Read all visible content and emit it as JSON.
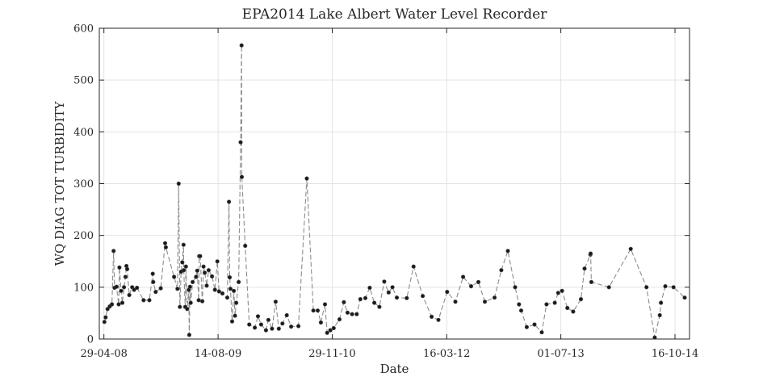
{
  "chart_data": {
    "type": "scatter",
    "title": "EPA2014 Lake Albert Water Level Recorder",
    "xlabel": "Date",
    "ylabel": "WQ DIAG TOT TURBIDITY",
    "ylim": [
      0,
      600
    ],
    "yticks": [
      0,
      100,
      200,
      300,
      400,
      500,
      600
    ],
    "xlim": [
      "2008-04-10",
      "2014-12-15"
    ],
    "xticks": [
      {
        "date": "2008-04-29",
        "label": "29-04-08"
      },
      {
        "date": "2009-08-14",
        "label": "14-08-09"
      },
      {
        "date": "2010-11-29",
        "label": "29-11-10"
      },
      {
        "date": "2012-03-16",
        "label": "16-03-12"
      },
      {
        "date": "2013-07-01",
        "label": "01-07-13"
      },
      {
        "date": "2014-10-16",
        "label": "16-10-14"
      }
    ],
    "grid": true,
    "line_style": "dashed",
    "colors": {
      "marker": "#1a1a1a",
      "line": "#8c8c8c",
      "grid": "#e3e3e3",
      "axis": "#262626"
    },
    "series": [
      {
        "marker": "dot",
        "points": [
          {
            "x": "2008-05-01",
            "y": 33
          },
          {
            "x": "2008-05-06",
            "y": 42
          },
          {
            "x": "2008-05-14",
            "y": 58
          },
          {
            "x": "2008-05-23",
            "y": 63
          },
          {
            "x": "2008-06-01",
            "y": 67
          },
          {
            "x": "2008-06-08",
            "y": 170
          },
          {
            "x": "2008-06-12",
            "y": 99
          },
          {
            "x": "2008-06-20",
            "y": 101
          },
          {
            "x": "2008-06-29",
            "y": 67
          },
          {
            "x": "2008-07-02",
            "y": 138
          },
          {
            "x": "2008-07-09",
            "y": 93
          },
          {
            "x": "2008-07-14",
            "y": 70
          },
          {
            "x": "2008-07-21",
            "y": 100
          },
          {
            "x": "2008-07-27",
            "y": 120
          },
          {
            "x": "2008-07-31",
            "y": 141
          },
          {
            "x": "2008-08-03",
            "y": 135
          },
          {
            "x": "2008-08-12",
            "y": 85
          },
          {
            "x": "2008-08-24",
            "y": 100
          },
          {
            "x": "2008-09-01",
            "y": 95
          },
          {
            "x": "2008-09-13",
            "y": 99
          },
          {
            "x": "2008-10-10",
            "y": 75
          },
          {
            "x": "2008-11-03",
            "y": 75
          },
          {
            "x": "2008-11-17",
            "y": 126
          },
          {
            "x": "2008-11-19",
            "y": 110
          },
          {
            "x": "2008-11-29",
            "y": 91
          },
          {
            "x": "2008-12-20",
            "y": 98
          },
          {
            "x": "2009-01-07",
            "y": 185
          },
          {
            "x": "2009-01-10",
            "y": 177
          },
          {
            "x": "2009-02-13",
            "y": 120
          },
          {
            "x": "2009-02-27",
            "y": 97
          },
          {
            "x": "2009-03-04",
            "y": 300
          },
          {
            "x": "2009-03-09",
            "y": 62
          },
          {
            "x": "2009-03-14",
            "y": 130
          },
          {
            "x": "2009-03-19",
            "y": 148
          },
          {
            "x": "2009-03-24",
            "y": 182
          },
          {
            "x": "2009-03-25",
            "y": 133
          },
          {
            "x": "2009-03-31",
            "y": 62
          },
          {
            "x": "2009-04-03",
            "y": 140
          },
          {
            "x": "2009-04-08",
            "y": 58
          },
          {
            "x": "2009-04-15",
            "y": 95
          },
          {
            "x": "2009-04-17",
            "y": 8
          },
          {
            "x": "2009-04-20",
            "y": 101
          },
          {
            "x": "2009-04-23",
            "y": 70
          },
          {
            "x": "2009-05-01",
            "y": 110
          },
          {
            "x": "2009-05-15",
            "y": 120
          },
          {
            "x": "2009-05-20",
            "y": 132
          },
          {
            "x": "2009-05-26",
            "y": 75
          },
          {
            "x": "2009-05-28",
            "y": 160
          },
          {
            "x": "2009-06-01",
            "y": 160
          },
          {
            "x": "2009-06-10",
            "y": 73
          },
          {
            "x": "2009-06-15",
            "y": 140
          },
          {
            "x": "2009-06-20",
            "y": 128
          },
          {
            "x": "2009-06-28",
            "y": 103
          },
          {
            "x": "2009-07-06",
            "y": 133
          },
          {
            "x": "2009-07-20",
            "y": 121
          },
          {
            "x": "2009-08-01",
            "y": 95
          },
          {
            "x": "2009-08-11",
            "y": 150
          },
          {
            "x": "2009-08-18",
            "y": 92
          },
          {
            "x": "2009-09-01",
            "y": 88
          },
          {
            "x": "2009-09-21",
            "y": 80
          },
          {
            "x": "2009-09-28",
            "y": 265
          },
          {
            "x": "2009-10-01",
            "y": 119
          },
          {
            "x": "2009-10-04",
            "y": 97
          },
          {
            "x": "2009-10-11",
            "y": 34
          },
          {
            "x": "2009-10-18",
            "y": 93
          },
          {
            "x": "2009-10-23",
            "y": 45
          },
          {
            "x": "2009-10-28",
            "y": 70
          },
          {
            "x": "2009-11-07",
            "y": 110
          },
          {
            "x": "2009-11-15",
            "y": 380
          },
          {
            "x": "2009-11-19",
            "y": 567
          },
          {
            "x": "2009-11-20",
            "y": 313
          },
          {
            "x": "2009-12-04",
            "y": 180
          },
          {
            "x": "2009-12-21",
            "y": 28
          },
          {
            "x": "2010-01-13",
            "y": 22
          },
          {
            "x": "2010-01-26",
            "y": 44
          },
          {
            "x": "2010-02-08",
            "y": 28
          },
          {
            "x": "2010-02-28",
            "y": 17
          },
          {
            "x": "2010-03-10",
            "y": 37
          },
          {
            "x": "2010-03-25",
            "y": 20
          },
          {
            "x": "2010-04-09",
            "y": 72
          },
          {
            "x": "2010-04-22",
            "y": 20
          },
          {
            "x": "2010-05-07",
            "y": 30
          },
          {
            "x": "2010-05-25",
            "y": 46
          },
          {
            "x": "2010-06-12",
            "y": 24
          },
          {
            "x": "2010-07-12",
            "y": 25
          },
          {
            "x": "2010-08-16",
            "y": 310
          },
          {
            "x": "2010-09-12",
            "y": 55
          },
          {
            "x": "2010-09-30",
            "y": 55
          },
          {
            "x": "2010-10-13",
            "y": 32
          },
          {
            "x": "2010-10-30",
            "y": 67
          },
          {
            "x": "2010-11-08",
            "y": 12
          },
          {
            "x": "2010-11-21",
            "y": 17
          },
          {
            "x": "2010-12-05",
            "y": 21
          },
          {
            "x": "2010-12-29",
            "y": 38
          },
          {
            "x": "2011-01-16",
            "y": 71
          },
          {
            "x": "2011-01-31",
            "y": 51
          },
          {
            "x": "2011-02-19",
            "y": 48
          },
          {
            "x": "2011-03-10",
            "y": 48
          },
          {
            "x": "2011-03-25",
            "y": 77
          },
          {
            "x": "2011-04-15",
            "y": 79
          },
          {
            "x": "2011-05-03",
            "y": 99
          },
          {
            "x": "2011-05-22",
            "y": 70
          },
          {
            "x": "2011-06-12",
            "y": 62
          },
          {
            "x": "2011-07-02",
            "y": 111
          },
          {
            "x": "2011-07-20",
            "y": 90
          },
          {
            "x": "2011-08-05",
            "y": 100
          },
          {
            "x": "2011-08-23",
            "y": 80
          },
          {
            "x": "2011-10-03",
            "y": 79
          },
          {
            "x": "2011-10-31",
            "y": 140
          },
          {
            "x": "2011-12-08",
            "y": 83
          },
          {
            "x": "2012-01-14",
            "y": 43
          },
          {
            "x": "2012-02-11",
            "y": 37
          },
          {
            "x": "2012-03-18",
            "y": 91
          },
          {
            "x": "2012-04-21",
            "y": 72
          },
          {
            "x": "2012-05-23",
            "y": 120
          },
          {
            "x": "2012-06-25",
            "y": 102
          },
          {
            "x": "2012-07-25",
            "y": 110
          },
          {
            "x": "2012-08-21",
            "y": 72
          },
          {
            "x": "2012-09-30",
            "y": 80
          },
          {
            "x": "2012-10-28",
            "y": 133
          },
          {
            "x": "2012-11-24",
            "y": 170
          },
          {
            "x": "2012-12-24",
            "y": 100
          },
          {
            "x": "2013-01-09",
            "y": 67
          },
          {
            "x": "2013-01-18",
            "y": 55
          },
          {
            "x": "2013-02-10",
            "y": 23
          },
          {
            "x": "2013-03-14",
            "y": 28
          },
          {
            "x": "2013-04-13",
            "y": 13
          },
          {
            "x": "2013-05-03",
            "y": 67
          },
          {
            "x": "2013-06-06",
            "y": 70
          },
          {
            "x": "2013-06-20",
            "y": 89
          },
          {
            "x": "2013-07-06",
            "y": 93
          },
          {
            "x": "2013-07-28",
            "y": 60
          },
          {
            "x": "2013-08-21",
            "y": 53
          },
          {
            "x": "2013-09-22",
            "y": 77
          },
          {
            "x": "2013-10-07",
            "y": 136
          },
          {
            "x": "2013-10-31",
            "y": 163
          },
          {
            "x": "2013-11-01",
            "y": 165
          },
          {
            "x": "2013-11-04",
            "y": 110
          },
          {
            "x": "2014-01-16",
            "y": 100
          },
          {
            "x": "2014-04-16",
            "y": 174
          },
          {
            "x": "2014-06-20",
            "y": 100
          },
          {
            "x": "2014-07-24",
            "y": 3
          },
          {
            "x": "2014-08-14",
            "y": 46
          },
          {
            "x": "2014-08-19",
            "y": 70
          },
          {
            "x": "2014-09-06",
            "y": 102
          },
          {
            "x": "2014-10-10",
            "y": 100
          },
          {
            "x": "2014-11-25",
            "y": 80
          }
        ]
      }
    ]
  }
}
